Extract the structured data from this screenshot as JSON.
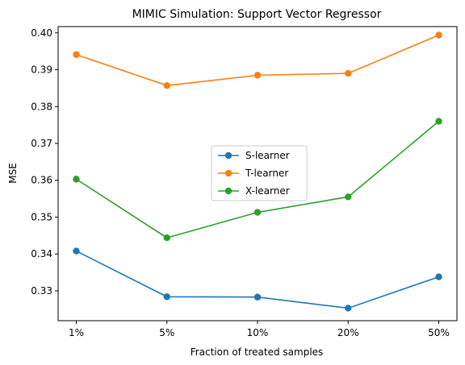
{
  "chart_data": {
    "type": "line",
    "title": "MIMIC Simulation: Support Vector Regressor",
    "xlabel": "Fraction of treated samples",
    "ylabel": "MSE",
    "categories": [
      "1%",
      "5%",
      "10%",
      "20%",
      "50%"
    ],
    "ylim": [
      0.3219,
      0.4017
    ],
    "yticks": [
      0.33,
      0.34,
      0.35,
      0.36,
      0.37,
      0.38,
      0.39,
      0.4
    ],
    "ytick_labels": [
      "0.33",
      "0.34",
      "0.35",
      "0.36",
      "0.37",
      "0.38",
      "0.39",
      "0.40"
    ],
    "grid": false,
    "legend_position": "center",
    "series": [
      {
        "name": "S-learner",
        "color": "#1f77b4",
        "marker": "circle",
        "values": [
          0.3408,
          0.3284,
          0.3283,
          0.3253,
          0.3338
        ]
      },
      {
        "name": "T-learner",
        "color": "#ff7f0e",
        "marker": "circle",
        "values": [
          0.3941,
          0.3857,
          0.3885,
          0.389,
          0.3994
        ]
      },
      {
        "name": "X-learner",
        "color": "#2ca02c",
        "marker": "circle",
        "values": [
          0.3603,
          0.3444,
          0.3513,
          0.3555,
          0.376
        ]
      }
    ]
  }
}
